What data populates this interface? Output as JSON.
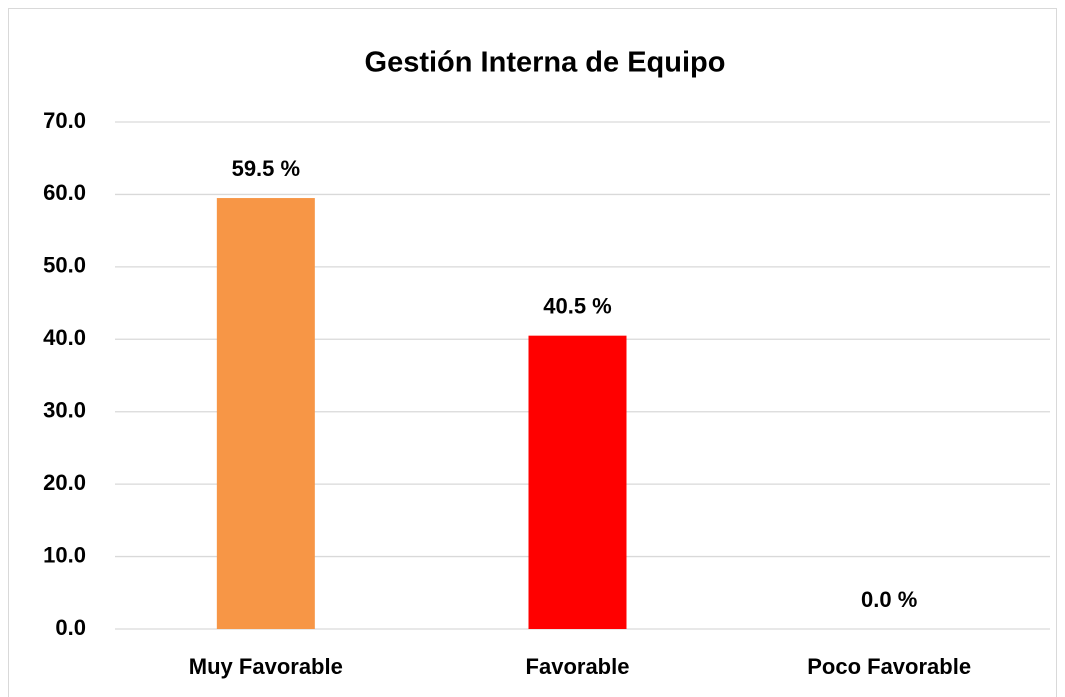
{
  "chart_data": {
    "type": "bar",
    "title": "Gestión Interna de Equipo",
    "categories": [
      "Muy Favorable",
      "Favorable",
      "Poco Favorable"
    ],
    "values": [
      59.5,
      40.5,
      0
    ],
    "value_labels": [
      "59.5 %",
      "40.5 %",
      "0.0 %"
    ],
    "colors": [
      "#f79646",
      "#ff0000",
      null
    ],
    "ylim": [
      0,
      70
    ],
    "yticks": [
      {
        "value": 0,
        "label": "0.0"
      },
      {
        "value": 10,
        "label": "10.0"
      },
      {
        "value": 20,
        "label": "20.0"
      },
      {
        "value": 30,
        "label": "30.0"
      },
      {
        "value": 40,
        "label": "40.0"
      },
      {
        "value": 50,
        "label": "50.0"
      },
      {
        "value": 60,
        "label": "60.0"
      },
      {
        "value": 70,
        "label": "70.0"
      }
    ],
    "grid": true
  }
}
